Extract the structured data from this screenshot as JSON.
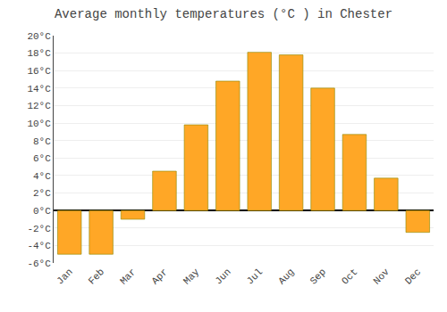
{
  "chart_data": {
    "type": "bar",
    "title": "Average monthly temperatures (°C ) in Chester",
    "categories": [
      "Jan",
      "Feb",
      "Mar",
      "Apr",
      "May",
      "Jun",
      "Jul",
      "Aug",
      "Sep",
      "Oct",
      "Nov",
      "Dec"
    ],
    "values": [
      -5.0,
      -5.0,
      -1.0,
      4.5,
      9.8,
      14.8,
      18.1,
      17.8,
      14.0,
      8.7,
      3.7,
      -2.5
    ],
    "color": "#FFA726",
    "ylim": [
      -6,
      20
    ],
    "yticks": [
      {
        "value": -6,
        "label": "-6°C"
      },
      {
        "value": -4,
        "label": "-4°C"
      },
      {
        "value": -2,
        "label": "-2°C"
      },
      {
        "value": 0,
        "label": "0°C"
      },
      {
        "value": 2,
        "label": "2°C"
      },
      {
        "value": 4,
        "label": "4°C"
      },
      {
        "value": 6,
        "label": "6°C"
      },
      {
        "value": 8,
        "label": "8°C"
      },
      {
        "value": 10,
        "label": "10°C"
      },
      {
        "value": 12,
        "label": "12°C"
      },
      {
        "value": 14,
        "label": "14°C"
      },
      {
        "value": 16,
        "label": "16°C"
      },
      {
        "value": 18,
        "label": "18°C"
      },
      {
        "value": 20,
        "label": "20°C"
      }
    ],
    "grid": true
  }
}
